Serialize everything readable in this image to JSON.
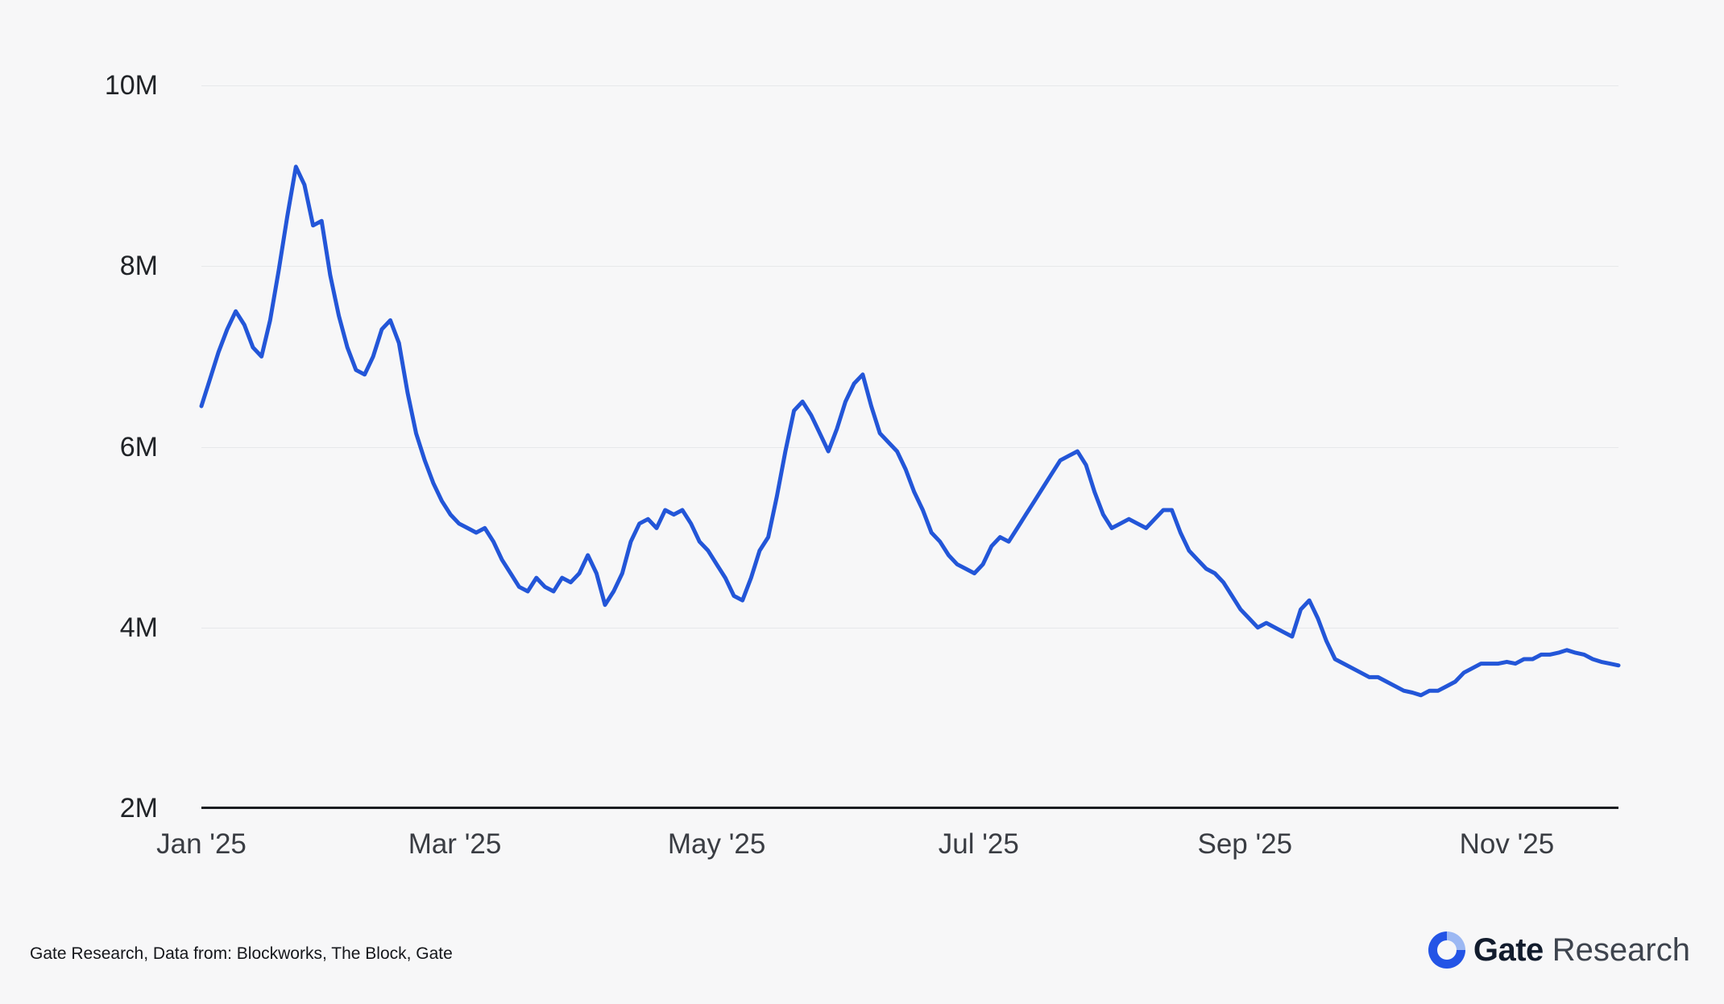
{
  "colors": {
    "background": "#f7f7f8",
    "grid": "#e7e8ea",
    "axis": "#1b1d21",
    "brand_blue": "#2354e6",
    "logo_light": "#9cb8f3"
  },
  "footer": {
    "source_text": "Gate Research, Data from: Blockworks, The Block, Gate",
    "brand_bold": "Gate",
    "brand_regular": "Research"
  },
  "chart_data": {
    "type": "line",
    "title": "",
    "xlabel": "",
    "ylabel": "",
    "unit": "M",
    "line_color": "#2356d8",
    "grid": "horizontal",
    "legend": "none",
    "ylim": [
      2,
      10
    ],
    "y_ticks": [
      {
        "label": "10M",
        "value": 10
      },
      {
        "label": "8M",
        "value": 8
      },
      {
        "label": "6M",
        "value": 6
      },
      {
        "label": "4M",
        "value": 4
      },
      {
        "label": "2M",
        "value": 2
      }
    ],
    "x_ticks": [
      {
        "label": "Jan '25",
        "date": "2025-01-01"
      },
      {
        "label": "Mar '25",
        "date": "2025-03-01"
      },
      {
        "label": "May '25",
        "date": "2025-05-01"
      },
      {
        "label": "Jul '25",
        "date": "2025-07-01"
      },
      {
        "label": "Sep '25",
        "date": "2025-09-01"
      },
      {
        "label": "Nov '25",
        "date": "2025-11-01"
      }
    ],
    "points": [
      [
        "2025-01-01",
        6.45
      ],
      [
        "2025-01-03",
        6.75
      ],
      [
        "2025-01-05",
        7.05
      ],
      [
        "2025-01-07",
        7.3
      ],
      [
        "2025-01-09",
        7.5
      ],
      [
        "2025-01-11",
        7.35
      ],
      [
        "2025-01-13",
        7.1
      ],
      [
        "2025-01-15",
        7.0
      ],
      [
        "2025-01-17",
        7.4
      ],
      [
        "2025-01-19",
        7.95
      ],
      [
        "2025-01-21",
        8.55
      ],
      [
        "2025-01-23",
        9.1
      ],
      [
        "2025-01-25",
        8.9
      ],
      [
        "2025-01-27",
        8.45
      ],
      [
        "2025-01-29",
        8.5
      ],
      [
        "2025-01-31",
        7.9
      ],
      [
        "2025-02-02",
        7.45
      ],
      [
        "2025-02-04",
        7.1
      ],
      [
        "2025-02-06",
        6.85
      ],
      [
        "2025-02-08",
        6.8
      ],
      [
        "2025-02-10",
        7.0
      ],
      [
        "2025-02-12",
        7.3
      ],
      [
        "2025-02-14",
        7.4
      ],
      [
        "2025-02-16",
        7.15
      ],
      [
        "2025-02-18",
        6.6
      ],
      [
        "2025-02-20",
        6.15
      ],
      [
        "2025-02-22",
        5.85
      ],
      [
        "2025-02-24",
        5.6
      ],
      [
        "2025-02-26",
        5.4
      ],
      [
        "2025-02-28",
        5.25
      ],
      [
        "2025-03-02",
        5.15
      ],
      [
        "2025-03-04",
        5.1
      ],
      [
        "2025-03-06",
        5.05
      ],
      [
        "2025-03-08",
        5.1
      ],
      [
        "2025-03-10",
        4.95
      ],
      [
        "2025-03-12",
        4.75
      ],
      [
        "2025-03-14",
        4.6
      ],
      [
        "2025-03-16",
        4.45
      ],
      [
        "2025-03-18",
        4.4
      ],
      [
        "2025-03-20",
        4.55
      ],
      [
        "2025-03-22",
        4.45
      ],
      [
        "2025-03-24",
        4.4
      ],
      [
        "2025-03-26",
        4.55
      ],
      [
        "2025-03-28",
        4.5
      ],
      [
        "2025-03-30",
        4.6
      ],
      [
        "2025-04-01",
        4.8
      ],
      [
        "2025-04-03",
        4.6
      ],
      [
        "2025-04-05",
        4.25
      ],
      [
        "2025-04-07",
        4.4
      ],
      [
        "2025-04-09",
        4.6
      ],
      [
        "2025-04-11",
        4.95
      ],
      [
        "2025-04-13",
        5.15
      ],
      [
        "2025-04-15",
        5.2
      ],
      [
        "2025-04-17",
        5.1
      ],
      [
        "2025-04-19",
        5.3
      ],
      [
        "2025-04-21",
        5.25
      ],
      [
        "2025-04-23",
        5.3
      ],
      [
        "2025-04-25",
        5.15
      ],
      [
        "2025-04-27",
        4.95
      ],
      [
        "2025-04-29",
        4.85
      ],
      [
        "2025-05-01",
        4.7
      ],
      [
        "2025-05-03",
        4.55
      ],
      [
        "2025-05-05",
        4.35
      ],
      [
        "2025-05-07",
        4.3
      ],
      [
        "2025-05-09",
        4.55
      ],
      [
        "2025-05-11",
        4.85
      ],
      [
        "2025-05-13",
        5.0
      ],
      [
        "2025-05-15",
        5.45
      ],
      [
        "2025-05-17",
        5.95
      ],
      [
        "2025-05-19",
        6.4
      ],
      [
        "2025-05-21",
        6.5
      ],
      [
        "2025-05-23",
        6.35
      ],
      [
        "2025-05-25",
        6.15
      ],
      [
        "2025-05-27",
        5.95
      ],
      [
        "2025-05-29",
        6.2
      ],
      [
        "2025-05-31",
        6.5
      ],
      [
        "2025-06-02",
        6.7
      ],
      [
        "2025-06-04",
        6.8
      ],
      [
        "2025-06-06",
        6.45
      ],
      [
        "2025-06-08",
        6.15
      ],
      [
        "2025-06-10",
        6.05
      ],
      [
        "2025-06-12",
        5.95
      ],
      [
        "2025-06-14",
        5.75
      ],
      [
        "2025-06-16",
        5.5
      ],
      [
        "2025-06-18",
        5.3
      ],
      [
        "2025-06-20",
        5.05
      ],
      [
        "2025-06-22",
        4.95
      ],
      [
        "2025-06-24",
        4.8
      ],
      [
        "2025-06-26",
        4.7
      ],
      [
        "2025-06-28",
        4.65
      ],
      [
        "2025-06-30",
        4.6
      ],
      [
        "2025-07-02",
        4.7
      ],
      [
        "2025-07-04",
        4.9
      ],
      [
        "2025-07-06",
        5.0
      ],
      [
        "2025-07-08",
        4.95
      ],
      [
        "2025-07-10",
        5.1
      ],
      [
        "2025-07-12",
        5.25
      ],
      [
        "2025-07-14",
        5.4
      ],
      [
        "2025-07-16",
        5.55
      ],
      [
        "2025-07-18",
        5.7
      ],
      [
        "2025-07-20",
        5.85
      ],
      [
        "2025-07-22",
        5.9
      ],
      [
        "2025-07-24",
        5.95
      ],
      [
        "2025-07-26",
        5.8
      ],
      [
        "2025-07-28",
        5.5
      ],
      [
        "2025-07-30",
        5.25
      ],
      [
        "2025-08-01",
        5.1
      ],
      [
        "2025-08-03",
        5.15
      ],
      [
        "2025-08-05",
        5.2
      ],
      [
        "2025-08-07",
        5.15
      ],
      [
        "2025-08-09",
        5.1
      ],
      [
        "2025-08-11",
        5.2
      ],
      [
        "2025-08-13",
        5.3
      ],
      [
        "2025-08-15",
        5.3
      ],
      [
        "2025-08-17",
        5.05
      ],
      [
        "2025-08-19",
        4.85
      ],
      [
        "2025-08-21",
        4.75
      ],
      [
        "2025-08-23",
        4.65
      ],
      [
        "2025-08-25",
        4.6
      ],
      [
        "2025-08-27",
        4.5
      ],
      [
        "2025-08-29",
        4.35
      ],
      [
        "2025-08-31",
        4.2
      ],
      [
        "2025-09-02",
        4.1
      ],
      [
        "2025-09-04",
        4.0
      ],
      [
        "2025-09-06",
        4.05
      ],
      [
        "2025-09-08",
        4.0
      ],
      [
        "2025-09-10",
        3.95
      ],
      [
        "2025-09-12",
        3.9
      ],
      [
        "2025-09-14",
        4.2
      ],
      [
        "2025-09-16",
        4.3
      ],
      [
        "2025-09-18",
        4.1
      ],
      [
        "2025-09-20",
        3.85
      ],
      [
        "2025-09-22",
        3.65
      ],
      [
        "2025-09-24",
        3.6
      ],
      [
        "2025-09-26",
        3.55
      ],
      [
        "2025-09-28",
        3.5
      ],
      [
        "2025-09-30",
        3.45
      ],
      [
        "2025-10-02",
        3.45
      ],
      [
        "2025-10-04",
        3.4
      ],
      [
        "2025-10-06",
        3.35
      ],
      [
        "2025-10-08",
        3.3
      ],
      [
        "2025-10-10",
        3.28
      ],
      [
        "2025-10-12",
        3.25
      ],
      [
        "2025-10-14",
        3.3
      ],
      [
        "2025-10-16",
        3.3
      ],
      [
        "2025-10-18",
        3.35
      ],
      [
        "2025-10-20",
        3.4
      ],
      [
        "2025-10-22",
        3.5
      ],
      [
        "2025-10-24",
        3.55
      ],
      [
        "2025-10-26",
        3.6
      ],
      [
        "2025-10-28",
        3.6
      ],
      [
        "2025-10-30",
        3.6
      ],
      [
        "2025-11-01",
        3.62
      ],
      [
        "2025-11-03",
        3.6
      ],
      [
        "2025-11-05",
        3.65
      ],
      [
        "2025-11-07",
        3.65
      ],
      [
        "2025-11-09",
        3.7
      ],
      [
        "2025-11-11",
        3.7
      ],
      [
        "2025-11-13",
        3.72
      ],
      [
        "2025-11-15",
        3.75
      ],
      [
        "2025-11-17",
        3.72
      ],
      [
        "2025-11-19",
        3.7
      ],
      [
        "2025-11-21",
        3.65
      ],
      [
        "2025-11-23",
        3.62
      ],
      [
        "2025-11-25",
        3.6
      ],
      [
        "2025-11-27",
        3.58
      ]
    ]
  }
}
